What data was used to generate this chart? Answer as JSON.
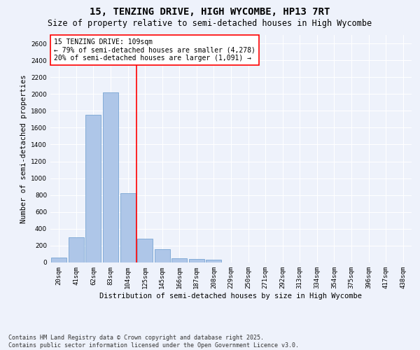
{
  "title": "15, TENZING DRIVE, HIGH WYCOMBE, HP13 7RT",
  "subtitle": "Size of property relative to semi-detached houses in High Wycombe",
  "xlabel": "Distribution of semi-detached houses by size in High Wycombe",
  "ylabel": "Number of semi-detached properties",
  "footnote": "Contains HM Land Registry data © Crown copyright and database right 2025.\nContains public sector information licensed under the Open Government Licence v3.0.",
  "categories": [
    "20sqm",
    "41sqm",
    "62sqm",
    "83sqm",
    "104sqm",
    "125sqm",
    "145sqm",
    "166sqm",
    "187sqm",
    "208sqm",
    "229sqm",
    "250sqm",
    "271sqm",
    "292sqm",
    "313sqm",
    "334sqm",
    "354sqm",
    "375sqm",
    "396sqm",
    "417sqm",
    "438sqm"
  ],
  "values": [
    60,
    300,
    1750,
    2020,
    820,
    285,
    155,
    50,
    45,
    35,
    0,
    0,
    0,
    0,
    0,
    0,
    0,
    0,
    0,
    0,
    0
  ],
  "bar_color": "#aec6e8",
  "bar_edge_color": "#6699cc",
  "ylim": [
    0,
    2700
  ],
  "yticks": [
    0,
    200,
    400,
    600,
    800,
    1000,
    1200,
    1400,
    1600,
    1800,
    2000,
    2200,
    2400,
    2600
  ],
  "property_bin_index": 4,
  "red_line_color": "#ff0000",
  "annotation_text": "15 TENZING DRIVE: 109sqm\n← 79% of semi-detached houses are smaller (4,278)\n20% of semi-detached houses are larger (1,091) →",
  "annotation_box_color": "#ffffff",
  "annotation_border_color": "#ff0000",
  "background_color": "#eef2fb",
  "grid_color": "#ffffff",
  "title_fontsize": 10,
  "subtitle_fontsize": 8.5,
  "xlabel_fontsize": 7.5,
  "ylabel_fontsize": 7.5,
  "tick_fontsize": 6.5,
  "annotation_fontsize": 7,
  "footnote_fontsize": 6
}
